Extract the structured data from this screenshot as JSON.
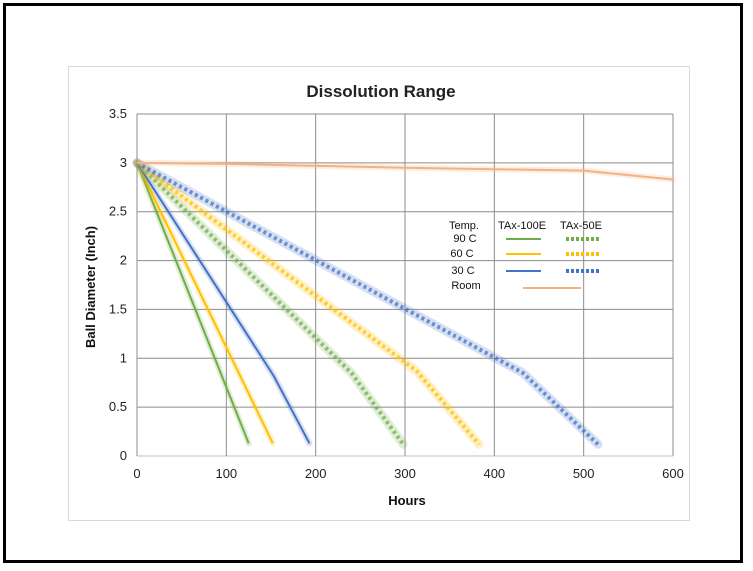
{
  "chart_data": {
    "type": "line",
    "title": "Dissolution Range",
    "xlabel": "Hours",
    "ylabel": "Ball Diameter (Inch)",
    "xlim": [
      0,
      600
    ],
    "ylim": [
      0,
      3.5
    ],
    "x_ticks": [
      "0",
      "100",
      "200",
      "300",
      "400",
      "500",
      "600"
    ],
    "y_ticks": [
      "0",
      "0.5",
      "1",
      "1.5",
      "2",
      "2.5",
      "3",
      "3.5"
    ],
    "grid": true,
    "legend": {
      "position": "right-middle",
      "header": [
        "Temp.",
        "TAx-100E",
        "TAx-50E"
      ],
      "rows": [
        "90 C",
        "60 C",
        "30 C",
        "Room"
      ]
    },
    "colors": {
      "green": "#70ad47",
      "yellow": "#ffc000",
      "blue": "#4472c4",
      "orange": "#f4b183"
    },
    "series": [
      {
        "color": "green",
        "style": "solid",
        "x": [
          0,
          125
        ],
        "y": [
          3.0,
          0.13
        ]
      },
      {
        "color": "yellow",
        "style": "solid",
        "x": [
          0,
          152
        ],
        "y": [
          3.0,
          0.13
        ]
      },
      {
        "color": "blue",
        "style": "solid",
        "x": [
          0,
          153,
          193
        ],
        "y": [
          3.0,
          0.82,
          0.13
        ]
      },
      {
        "color": "green",
        "style": "dotted",
        "x": [
          0,
          240,
          298
        ],
        "y": [
          3.0,
          0.85,
          0.12
        ]
      },
      {
        "color": "yellow",
        "style": "dotted",
        "x": [
          0,
          313,
          383
        ],
        "y": [
          3.0,
          0.87,
          0.12
        ]
      },
      {
        "color": "blue",
        "style": "dotted",
        "x": [
          0,
          432,
          516
        ],
        "y": [
          3.0,
          0.85,
          0.12
        ]
      },
      {
        "color": "orange",
        "style": "solid",
        "x": [
          0,
          100,
          300,
          500,
          600
        ],
        "y": [
          3.0,
          2.99,
          2.95,
          2.92,
          2.83
        ]
      }
    ]
  }
}
